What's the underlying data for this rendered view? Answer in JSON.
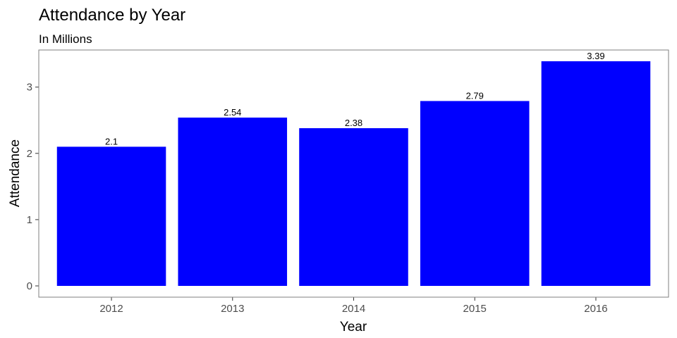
{
  "chart_data": {
    "type": "bar",
    "title": "Attendance by Year",
    "subtitle": "In Millions",
    "xlabel": "Year",
    "ylabel": "Attendance",
    "categories": [
      "2012",
      "2013",
      "2014",
      "2015",
      "2016"
    ],
    "values": [
      2.1,
      2.54,
      2.38,
      2.79,
      3.39
    ],
    "data_labels": [
      "2.1",
      "2.54",
      "2.38",
      "2.79",
      "3.39"
    ],
    "yticks": [
      0,
      1,
      2,
      3
    ],
    "ylim": [
      -0.17,
      3.56
    ],
    "grid": false,
    "legend": "none",
    "colors": {
      "bar": "#0000ff",
      "panel_border": "#7f7f7f",
      "tick_text": "#4d4d4d"
    }
  }
}
